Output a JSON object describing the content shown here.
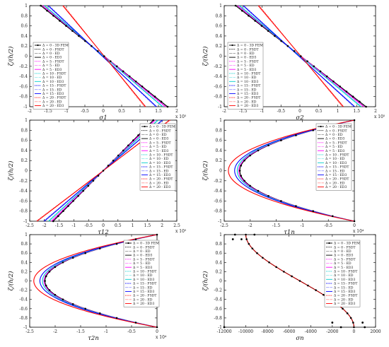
{
  "figure": {
    "ylabel": "ζ/(h/2)",
    "legend_entries": [
      "Δ = 0 - 3D FEM",
      "Δ = 0 - FSDT",
      "Δ = 0 - ED",
      "Δ = 0 - ED3",
      "Δ = 5 - FSDT",
      "Δ = 5 - ED",
      "Δ = 5 - ED3",
      "Δ = 10 - FSDT",
      "Δ = 10 - ED",
      "Δ = 10 - ED3",
      "Δ = 15 - FSDT",
      "Δ = 15 - ED",
      "Δ = 15 - ED3",
      "Δ = 20 - FSDT",
      "Δ = 20 - ED",
      "Δ = 20 - ED3"
    ],
    "legend_styles": [
      {
        "color": "#000000",
        "dash": "none",
        "marker": "dot"
      },
      {
        "color": "#000000",
        "dash": "1.2,1",
        "marker": "none"
      },
      {
        "color": "#000000",
        "dash": "0.4,0.8",
        "marker": "none"
      },
      {
        "color": "#000000",
        "dash": "none",
        "marker": "none"
      },
      {
        "color": "#ff00ff",
        "dash": "1.2,1",
        "marker": "none"
      },
      {
        "color": "#ff00ff",
        "dash": "0.4,0.8",
        "marker": "none"
      },
      {
        "color": "#ff00ff",
        "dash": "none",
        "marker": "none"
      },
      {
        "color": "#00cccc",
        "dash": "1.2,1",
        "marker": "none"
      },
      {
        "color": "#00cccc",
        "dash": "0.4,0.8",
        "marker": "none"
      },
      {
        "color": "#00cccc",
        "dash": "none",
        "marker": "none"
      },
      {
        "color": "#0000ff",
        "dash": "1.2,1",
        "marker": "none"
      },
      {
        "color": "#0000ff",
        "dash": "0.4,0.8",
        "marker": "none"
      },
      {
        "color": "#0000ff",
        "dash": "none",
        "marker": "none"
      },
      {
        "color": "#ff0000",
        "dash": "1.2,1",
        "marker": "none"
      },
      {
        "color": "#ff0000",
        "dash": "0.4,0.8",
        "marker": "none"
      },
      {
        "color": "#ff0000",
        "dash": "none",
        "marker": "none"
      }
    ],
    "series_colors": {
      "d0": "#000000",
      "d5": "#ff00ff",
      "d10": "#00cccc",
      "d15": "#0000ff",
      "d20": "#ff0000"
    }
  },
  "chart_data": [
    {
      "type": "line",
      "xlabel": "σ1",
      "ylabel": "ζ/(h/2)",
      "exponent": "x 10⁵",
      "xlim": [
        -2,
        2
      ],
      "ylim": [
        -1,
        1
      ],
      "xticks": [
        -2,
        -1.5,
        -1,
        -0.5,
        0,
        0.5,
        1,
        1.5,
        2
      ],
      "xticklabels": [
        "-2",
        "-1.5",
        "-1",
        "-0.5",
        "0",
        "0.5",
        "1",
        "1.5",
        "2"
      ],
      "yticks": [
        -1,
        -0.8,
        -0.6,
        -0.4,
        -0.2,
        0,
        0.2,
        0.4,
        0.6,
        0.8,
        1
      ],
      "yticklabels": [
        "-1",
        "-0.8",
        "-0.6",
        "-0.4",
        "-0.2",
        "0",
        "0.2",
        "0.4",
        "0.6",
        "0.8",
        "1"
      ],
      "kind": "linear",
      "slopes": [
        {
          "name": "Δ = 0",
          "x_at_top": -1.7,
          "x_at_bottom": 1.75
        },
        {
          "name": "Δ = 5",
          "x_at_top": -1.65,
          "x_at_bottom": 1.7
        },
        {
          "name": "Δ = 10",
          "x_at_top": -1.6,
          "x_at_bottom": 1.62
        },
        {
          "name": "Δ = 15",
          "x_at_top": -1.5,
          "x_at_bottom": 1.45
        },
        {
          "name": "Δ = 20",
          "x_at_top": -1.1,
          "x_at_bottom": 1.15
        }
      ]
    },
    {
      "type": "line",
      "xlabel": "σ2",
      "ylabel": "ζ/(h/2)",
      "exponent": "x 10⁵",
      "xlim": [
        -2,
        2
      ],
      "ylim": [
        -1,
        1
      ],
      "xticks": [
        -2,
        -1.5,
        -1,
        -0.5,
        0,
        0.5,
        1,
        1.5,
        2
      ],
      "xticklabels": [
        "-2",
        "-1.5",
        "-1",
        "-0.5",
        "0",
        "0.5",
        "1",
        "1.5",
        "2"
      ],
      "yticks": [
        -1,
        -0.8,
        -0.6,
        -0.4,
        -0.2,
        0,
        0.2,
        0.4,
        0.6,
        0.8,
        1
      ],
      "yticklabels": [
        "-1",
        "-0.8",
        "-0.6",
        "-0.4",
        "-0.2",
        "0",
        "0.2",
        "0.4",
        "0.6",
        "0.8",
        "1"
      ],
      "kind": "linear",
      "slopes": [
        {
          "name": "Δ = 0",
          "x_at_top": -1.7,
          "x_at_bottom": 1.75
        },
        {
          "name": "Δ = 5",
          "x_at_top": -1.65,
          "x_at_bottom": 1.7
        },
        {
          "name": "Δ = 10",
          "x_at_top": -1.6,
          "x_at_bottom": 1.62
        },
        {
          "name": "Δ = 15",
          "x_at_top": -1.5,
          "x_at_bottom": 1.45
        },
        {
          "name": "Δ = 20",
          "x_at_top": -1.1,
          "x_at_bottom": 1.15
        }
      ]
    },
    {
      "type": "line",
      "xlabel": "τ12",
      "ylabel": "ζ/(h/2)",
      "exponent": "x 10⁵",
      "xlim": [
        -2.5,
        2.5
      ],
      "ylim": [
        -1,
        1
      ],
      "xticks": [
        -2.5,
        -2,
        -1.5,
        -1,
        -0.5,
        0,
        0.5,
        1,
        1.5,
        2,
        2.5
      ],
      "xticklabels": [
        "-2.5",
        "-2",
        "-1.5",
        "-1",
        "-0.5",
        "0",
        "0.5",
        "1",
        "1.5",
        "2",
        "2.5"
      ],
      "yticks": [
        -1,
        -0.8,
        -0.6,
        -0.4,
        -0.2,
        0,
        0.2,
        0.4,
        0.6,
        0.8,
        1
      ],
      "yticklabels": [
        "-1",
        "-0.8",
        "-0.6",
        "-0.4",
        "-0.2",
        "0",
        "0.2",
        "0.4",
        "0.6",
        "0.8",
        "1"
      ],
      "kind": "linear",
      "slopes": [
        {
          "name": "Δ = 0",
          "x_at_top": 1.7,
          "x_at_bottom": -1.7
        },
        {
          "name": "Δ = 5",
          "x_at_top": 1.75,
          "x_at_bottom": -1.75
        },
        {
          "name": "Δ = 10",
          "x_at_top": 1.85,
          "x_at_bottom": -1.85
        },
        {
          "name": "Δ = 15",
          "x_at_top": 2.0,
          "x_at_bottom": -2.0
        },
        {
          "name": "Δ = 20",
          "x_at_top": 2.25,
          "x_at_bottom": -2.25
        }
      ]
    },
    {
      "type": "line",
      "xlabel": "τ1n",
      "ylabel": "ζ/(h/2)",
      "exponent": "x 10⁴",
      "xlim": [
        -2.5,
        0
      ],
      "ylim": [
        -1,
        1
      ],
      "xticks": [
        -2.5,
        -2,
        -1.5,
        -1,
        -0.5,
        0
      ],
      "xticklabels": [
        "-2.5",
        "-2",
        "-1.5",
        "-1",
        "-0.5",
        "0"
      ],
      "yticks": [
        -1,
        -0.8,
        -0.6,
        -0.4,
        -0.2,
        0,
        0.2,
        0.4,
        0.6,
        0.8,
        1
      ],
      "yticklabels": [
        "-1",
        "-0.8",
        "-0.6",
        "-0.4",
        "-0.2",
        "0",
        "0.2",
        "0.4",
        "0.6",
        "0.8",
        "1"
      ],
      "kind": "parabola",
      "peaks": [
        {
          "name": "Δ = 0",
          "x_min": -2.2
        },
        {
          "name": "Δ = 5",
          "x_min": -2.22
        },
        {
          "name": "Δ = 10",
          "x_min": -2.25
        },
        {
          "name": "Δ = 15",
          "x_min": -2.3
        },
        {
          "name": "Δ = 20",
          "x_min": -2.42
        }
      ]
    },
    {
      "type": "line",
      "xlabel": "τ2n",
      "ylabel": "ζ/(h/2)",
      "exponent": "x 10⁴",
      "xlim": [
        -2.5,
        0
      ],
      "ylim": [
        -1,
        1
      ],
      "xticks": [
        -2.5,
        -2,
        -1.5,
        -1,
        -0.5,
        0
      ],
      "xticklabels": [
        "-2.5",
        "-2",
        "-1.5",
        "-1",
        "-0.5",
        "0"
      ],
      "yticks": [
        -1,
        -0.8,
        -0.6,
        -0.4,
        -0.2,
        0,
        0.2,
        0.4,
        0.6,
        0.8,
        1
      ],
      "yticklabels": [
        "-1",
        "-0.8",
        "-0.6",
        "-0.4",
        "-0.2",
        "0",
        "0.2",
        "0.4",
        "0.6",
        "0.8",
        "1"
      ],
      "kind": "parabola",
      "peaks": [
        {
          "name": "Δ = 0",
          "x_min": -2.2
        },
        {
          "name": "Δ = 5",
          "x_min": -2.22
        },
        {
          "name": "Δ = 10",
          "x_min": -2.25
        },
        {
          "name": "Δ = 15",
          "x_min": -2.3
        },
        {
          "name": "Δ = 20",
          "x_min": -2.42
        }
      ]
    },
    {
      "type": "line",
      "xlabel": "σn",
      "ylabel": "ζ/(h/2)",
      "exponent": "",
      "xlim": [
        -12000,
        2000
      ],
      "ylim": [
        -1,
        1
      ],
      "xticks": [
        -12000,
        -10000,
        -8000,
        -6000,
        -4000,
        -2000,
        0,
        2000
      ],
      "xticklabels": [
        "-12000",
        "-10000",
        "-8000",
        "-6000",
        "-4000",
        "-2000",
        "0",
        "2000"
      ],
      "yticks": [
        -1,
        -0.8,
        -0.6,
        -0.4,
        -0.2,
        0,
        0.2,
        0.4,
        0.6,
        0.8,
        1
      ],
      "yticklabels": [
        "-1",
        "-0.8",
        "-0.6",
        "-0.4",
        "-0.2",
        "0",
        "0.2",
        "0.4",
        "0.6",
        "0.8",
        "1"
      ],
      "kind": "normal",
      "curve": {
        "top": -10000,
        "bottom": 0
      },
      "outliers": [
        [
          -11000,
          1
        ],
        [
          -9200,
          1
        ],
        [
          -11200,
          0.9
        ],
        [
          -10400,
          0.9
        ],
        [
          -12000,
          -1
        ],
        [
          -1200,
          -1
        ],
        [
          1000,
          -1
        ],
        [
          -2000,
          -0.9
        ],
        [
          800,
          -0.9
        ]
      ]
    }
  ]
}
